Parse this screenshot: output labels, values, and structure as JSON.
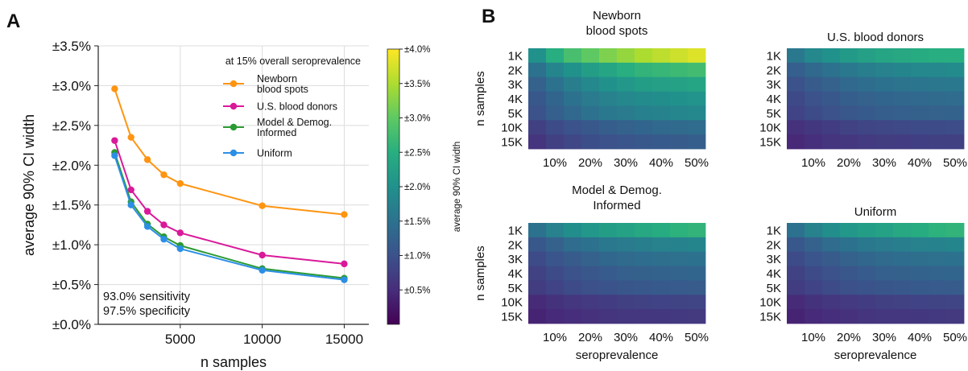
{
  "panel_labels": {
    "a": "A",
    "b": "B"
  },
  "chart_data": [
    {
      "type": "line",
      "xlabel": "n samples",
      "ylabel": "average 90% CI width",
      "x": [
        1000,
        2000,
        3000,
        4000,
        5000,
        10000,
        15000
      ],
      "xlim": [
        0,
        16500
      ],
      "xticks": [
        5000,
        10000,
        15000
      ],
      "xtick_labels": [
        "5000",
        "10000",
        "15000"
      ],
      "ylim": [
        0,
        3.5
      ],
      "yticks": [
        0,
        0.5,
        1.0,
        1.5,
        2.0,
        2.5,
        3.0,
        3.5
      ],
      "ytick_labels": [
        "±0.0%",
        "±0.5%",
        "±1.0%",
        "±1.5%",
        "±2.0%",
        "±2.5%",
        "±3.0%",
        "±3.5%"
      ],
      "grid": true,
      "legend_title": "at 15% overall seroprevalence",
      "legend_position": "top-right",
      "series": [
        {
          "name": "Newborn\nblood spots",
          "color": "#ff9411",
          "values": [
            2.96,
            2.35,
            2.07,
            1.88,
            1.77,
            1.49,
            1.38
          ]
        },
        {
          "name": "U.S. blood donors",
          "color": "#d9199a",
          "values": [
            2.31,
            1.69,
            1.42,
            1.25,
            1.15,
            0.87,
            0.76
          ]
        },
        {
          "name": "Model & Demog.\nInformed",
          "color": "#2a9a32",
          "values": [
            2.16,
            1.54,
            1.26,
            1.1,
            0.99,
            0.7,
            0.58
          ]
        },
        {
          "name": "Uniform",
          "color": "#2c8fe6",
          "values": [
            2.12,
            1.5,
            1.23,
            1.07,
            0.95,
            0.68,
            0.56
          ]
        }
      ],
      "annotation": [
        "93.0% sensitivity",
        "97.5% specificity"
      ]
    },
    {
      "type": "colorbar",
      "label": "average 90% CI width",
      "colormap": "viridis",
      "range": [
        0,
        4.0
      ],
      "ticks": [
        0.5,
        1.0,
        1.5,
        2.0,
        2.5,
        3.0,
        3.5,
        4.0
      ],
      "tick_labels": [
        "±0.5%",
        "±1.0%",
        "±1.5%",
        "±2.0%",
        "±2.5%",
        "±3.0%",
        "±3.5%",
        "±4.0%"
      ]
    },
    {
      "type": "heatmap",
      "shared": {
        "ylabel": "n samples",
        "xlabel": "seroprevalence",
        "rows": [
          "1K",
          "2K",
          "3K",
          "4K",
          "5K",
          "10K",
          "15K"
        ],
        "columns": [
          5,
          10,
          15,
          20,
          25,
          30,
          35,
          40,
          45,
          50
        ],
        "xtick_labels": [
          "10%",
          "20%",
          "30%",
          "40%",
          "50%"
        ],
        "value_range": [
          0,
          4.0
        ],
        "colormap": "viridis"
      },
      "panels": [
        {
          "title": "Newborn\nblood spots",
          "values": [
            [
              2.0,
              2.5,
              2.8,
              3.0,
              3.2,
              3.35,
              3.5,
              3.6,
              3.7,
              3.8
            ],
            [
              1.5,
              1.8,
              2.0,
              2.2,
              2.35,
              2.5,
              2.6,
              2.65,
              2.7,
              2.75
            ],
            [
              1.25,
              1.5,
              1.7,
              1.85,
              2.0,
              2.1,
              2.2,
              2.25,
              2.3,
              2.35
            ],
            [
              1.1,
              1.3,
              1.5,
              1.65,
              1.75,
              1.85,
              1.9,
              1.95,
              2.0,
              2.05
            ],
            [
              1.0,
              1.2,
              1.35,
              1.5,
              1.6,
              1.65,
              1.72,
              1.78,
              1.82,
              1.85
            ],
            [
              0.75,
              0.9,
              1.0,
              1.1,
              1.18,
              1.25,
              1.3,
              1.35,
              1.38,
              1.4
            ],
            [
              0.6,
              0.75,
              0.85,
              0.95,
              1.0,
              1.05,
              1.1,
              1.12,
              1.15,
              1.18
            ]
          ]
        },
        {
          "title": "U.S. blood donors",
          "values": [
            [
              1.6,
              1.85,
              2.0,
              2.15,
              2.25,
              2.35,
              2.4,
              2.45,
              2.5,
              2.5
            ],
            [
              1.2,
              1.35,
              1.5,
              1.6,
              1.7,
              1.75,
              1.8,
              1.85,
              1.85,
              1.9
            ],
            [
              1.0,
              1.15,
              1.25,
              1.35,
              1.42,
              1.5,
              1.52,
              1.55,
              1.58,
              1.6
            ],
            [
              0.88,
              1.0,
              1.1,
              1.18,
              1.25,
              1.3,
              1.33,
              1.36,
              1.38,
              1.4
            ],
            [
              0.8,
              0.9,
              1.0,
              1.08,
              1.13,
              1.18,
              1.2,
              1.23,
              1.25,
              1.26
            ],
            [
              0.55,
              0.65,
              0.72,
              0.78,
              0.82,
              0.85,
              0.88,
              0.9,
              0.92,
              0.93
            ],
            [
              0.45,
              0.53,
              0.6,
              0.64,
              0.68,
              0.7,
              0.72,
              0.74,
              0.75,
              0.76
            ]
          ]
        },
        {
          "title": "Model & Demog.\nInformed",
          "values": [
            [
              1.5,
              1.75,
              1.95,
              2.1,
              2.2,
              2.3,
              2.4,
              2.45,
              2.55,
              2.6
            ],
            [
              1.1,
              1.25,
              1.4,
              1.5,
              1.6,
              1.65,
              1.7,
              1.75,
              1.78,
              1.8
            ],
            [
              0.9,
              1.05,
              1.15,
              1.25,
              1.32,
              1.38,
              1.42,
              1.45,
              1.48,
              1.5
            ],
            [
              0.78,
              0.9,
              1.0,
              1.08,
              1.14,
              1.2,
              1.23,
              1.26,
              1.28,
              1.3
            ],
            [
              0.7,
              0.8,
              0.9,
              0.97,
              1.02,
              1.07,
              1.1,
              1.12,
              1.14,
              1.15
            ],
            [
              0.48,
              0.57,
              0.63,
              0.68,
              0.72,
              0.75,
              0.78,
              0.8,
              0.81,
              0.82
            ],
            [
              0.4,
              0.47,
              0.52,
              0.56,
              0.59,
              0.62,
              0.64,
              0.65,
              0.66,
              0.67
            ]
          ]
        },
        {
          "title": "Uniform",
          "values": [
            [
              1.5,
              1.75,
              1.95,
              2.1,
              2.2,
              2.3,
              2.4,
              2.45,
              2.55,
              2.6
            ],
            [
              1.1,
              1.25,
              1.4,
              1.5,
              1.6,
              1.65,
              1.7,
              1.75,
              1.78,
              1.8
            ],
            [
              0.9,
              1.05,
              1.15,
              1.25,
              1.32,
              1.38,
              1.42,
              1.45,
              1.48,
              1.5
            ],
            [
              0.78,
              0.9,
              1.0,
              1.08,
              1.14,
              1.2,
              1.23,
              1.26,
              1.28,
              1.3
            ],
            [
              0.7,
              0.8,
              0.9,
              0.97,
              1.02,
              1.07,
              1.1,
              1.12,
              1.14,
              1.15
            ],
            [
              0.48,
              0.57,
              0.63,
              0.68,
              0.72,
              0.75,
              0.78,
              0.8,
              0.81,
              0.82
            ],
            [
              0.4,
              0.47,
              0.52,
              0.56,
              0.59,
              0.62,
              0.64,
              0.65,
              0.66,
              0.67
            ]
          ]
        }
      ]
    }
  ]
}
